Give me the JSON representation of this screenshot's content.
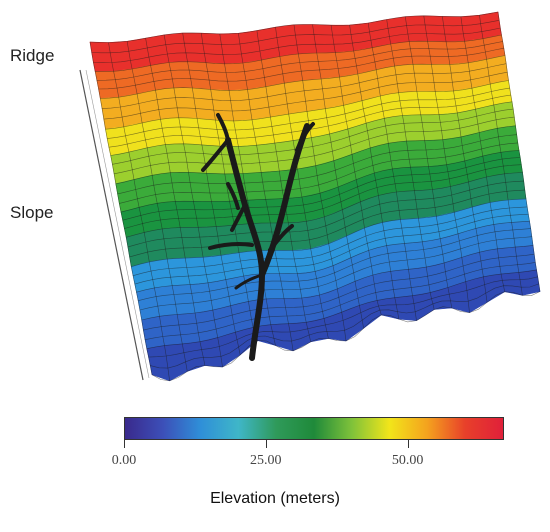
{
  "labels": {
    "ridge": "Ridge",
    "slope": "Slope"
  },
  "colorbar": {
    "title": "Elevation (meters)",
    "ticks": [
      {
        "label": "0.00",
        "value": 0
      },
      {
        "label": "25.00",
        "value": 25
      },
      {
        "label": "50.00",
        "value": 50
      }
    ],
    "min": 0,
    "max": 67,
    "colors": [
      "#3a2a8c",
      "#3c4fb8",
      "#2f8fd8",
      "#3fb6c8",
      "#2f9a5a",
      "#1f8a3a",
      "#7fc23a",
      "#f2e51a",
      "#f4a21e",
      "#e8402a",
      "#e0203a"
    ]
  },
  "surface": {
    "band_colors": [
      "#2f49b3",
      "#2f64c7",
      "#2e80d6",
      "#2c96dc",
      "#1f8a5e",
      "#1a9440",
      "#3bab3a",
      "#9ccf2e",
      "#f0e11d",
      "#f3ad20",
      "#ee6a24",
      "#e8302c"
    ],
    "channel_color": "#1a1a1a"
  }
}
